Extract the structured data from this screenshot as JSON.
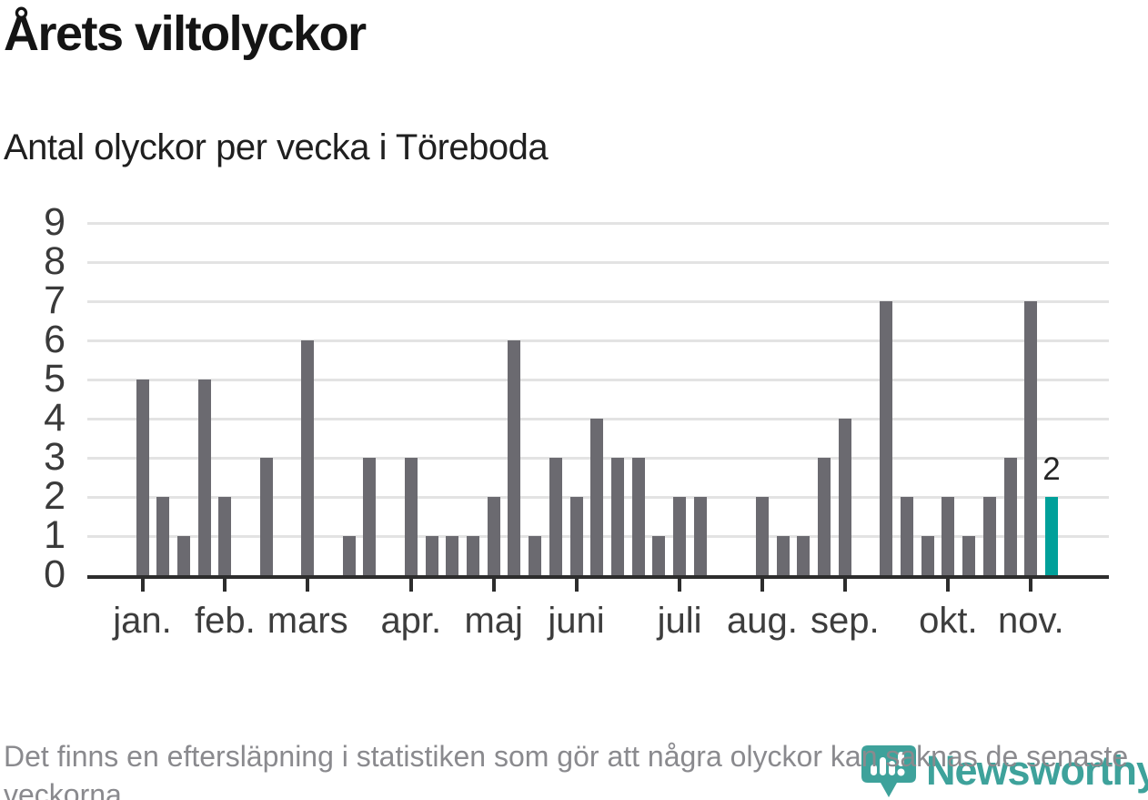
{
  "header": {
    "title": "Årets viltolyckor",
    "subtitle": "Antal olyckor per vecka i Töreboda"
  },
  "footer": {
    "note": "Det finns en eftersläpning i statistiken som gör att några olyckor kan saknas de senaste veckorna."
  },
  "logo": {
    "brand": "Newsworthy",
    "icon": "newsworthy-pin-barchart-icon",
    "color": "#3EA29B"
  },
  "chart_data": {
    "type": "bar",
    "title": "Årets viltolyckor",
    "subtitle": "Antal olyckor per vecka i Töreboda",
    "x_unit": "vecka (week index, read from bar positions)",
    "week_index": [
      1,
      2,
      3,
      4,
      5,
      6,
      7,
      8,
      9,
      10,
      11,
      12,
      13,
      14,
      15,
      16,
      17,
      18,
      19,
      20,
      21,
      22,
      23,
      24,
      25,
      26,
      27,
      28,
      29,
      30,
      31,
      32,
      33,
      34,
      35,
      36,
      37,
      38,
      39,
      40,
      41,
      42,
      43,
      44,
      45
    ],
    "values": [
      5,
      2,
      1,
      5,
      2,
      0,
      3,
      0,
      6,
      0,
      1,
      3,
      0,
      3,
      1,
      1,
      1,
      2,
      6,
      1,
      3,
      2,
      4,
      3,
      3,
      1,
      2,
      2,
      0,
      0,
      2,
      1,
      1,
      3,
      4,
      0,
      7,
      2,
      1,
      2,
      1,
      2,
      3,
      7,
      2
    ],
    "month_ticks": [
      {
        "label": "jan.",
        "week_index": 1
      },
      {
        "label": "feb.",
        "week_index": 5
      },
      {
        "label": "mars",
        "week_index": 9
      },
      {
        "label": "apr.",
        "week_index": 14
      },
      {
        "label": "maj",
        "week_index": 18
      },
      {
        "label": "juni",
        "week_index": 22
      },
      {
        "label": "juli",
        "week_index": 27
      },
      {
        "label": "aug.",
        "week_index": 31
      },
      {
        "label": "sep.",
        "week_index": 35
      },
      {
        "label": "okt.",
        "week_index": 40
      },
      {
        "label": "nov.",
        "week_index": 44
      }
    ],
    "yticks": [
      0,
      1,
      2,
      3,
      4,
      5,
      6,
      7,
      8,
      9
    ],
    "ylim": [
      0,
      9
    ],
    "grid": "horizontal",
    "legend": "none",
    "highlight_last_bar": {
      "index": 44,
      "value": 2,
      "value_label": "2",
      "color": "#00A09A"
    },
    "bar_color": "#6B6A70",
    "axis_color": "#2D2D2D",
    "gridline_color": "#E3E3E3"
  }
}
